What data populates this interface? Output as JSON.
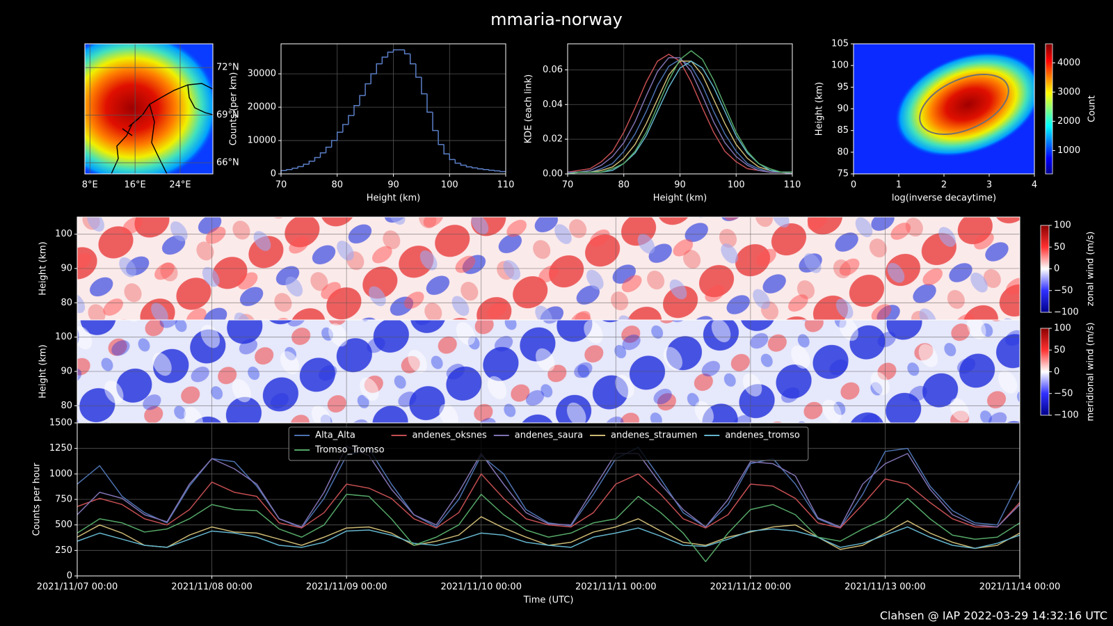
{
  "title": "mmaria-norway",
  "footer": "Clahsen @ IAP 2022-03-29 14:32:16 UTC",
  "chart_data": [
    {
      "type": "map",
      "xlim": [
        7.1,
        29.8
      ],
      "ylim": [
        65.3,
        73.5
      ],
      "xticks": [
        {
          "value": 8,
          "label": "8°E"
        },
        {
          "value": 16,
          "label": "16°E"
        },
        {
          "value": 24,
          "label": "24°E"
        }
      ],
      "yticks": [
        {
          "value": 72,
          "label": "72°N"
        },
        {
          "value": 69,
          "label": "69°N"
        },
        {
          "value": 66,
          "label": "66°N"
        }
      ],
      "grid": true
    },
    {
      "type": "histogram",
      "xlabel": "Height (km)",
      "ylabel": "Counts (per km)",
      "color": "#5b7fc8",
      "bins": [
        70,
        71,
        72,
        73,
        74,
        75,
        76,
        77,
        78,
        79,
        80,
        81,
        82,
        83,
        84,
        85,
        86,
        87,
        88,
        89,
        90,
        91,
        92,
        93,
        94,
        95,
        96,
        97,
        98,
        99,
        100,
        101,
        102,
        103,
        104,
        105,
        106,
        107,
        108,
        109,
        110
      ],
      "values": [
        1000,
        1300,
        1700,
        2200,
        2900,
        3800,
        4900,
        6300,
        8000,
        10000,
        12500,
        14800,
        17500,
        20500,
        23500,
        27000,
        30000,
        33000,
        35000,
        36500,
        37200,
        37200,
        36000,
        33000,
        29000,
        24000,
        18500,
        13000,
        8800,
        6000,
        4300,
        3200,
        2600,
        2100,
        1800,
        1500,
        1300,
        1100,
        900,
        700
      ],
      "xlim": [
        70,
        110
      ],
      "ylim": [
        0,
        39000
      ],
      "xticks": [
        70,
        80,
        90,
        100,
        110
      ],
      "yticks": [
        0,
        10000,
        20000,
        30000
      ],
      "grid": true
    },
    {
      "type": "line",
      "xlabel": "Height (km)",
      "ylabel": "KDE (each link)",
      "x": [
        70,
        72,
        74,
        76,
        78,
        80,
        82,
        84,
        86,
        88,
        90,
        92,
        94,
        96,
        98,
        100,
        102,
        104,
        106,
        108,
        110
      ],
      "series": [
        {
          "name": "Alta_Alta",
          "color": "#4c72b0",
          "values": [
            0.001,
            0.001,
            0.001,
            0.003,
            0.006,
            0.013,
            0.023,
            0.036,
            0.051,
            0.062,
            0.066,
            0.062,
            0.051,
            0.036,
            0.023,
            0.013,
            0.006,
            0.003,
            0.001,
            0.001,
            0.001
          ]
        },
        {
          "name": "andenes_oksnes",
          "color": "#c44e52",
          "values": [
            0.001,
            0.002,
            0.003,
            0.007,
            0.013,
            0.024,
            0.038,
            0.053,
            0.065,
            0.069,
            0.065,
            0.053,
            0.038,
            0.024,
            0.013,
            0.007,
            0.003,
            0.002,
            0.001,
            0.001,
            0.0
          ]
        },
        {
          "name": "andenes_saura",
          "color": "#8172b2",
          "values": [
            0.001,
            0.001,
            0.002,
            0.005,
            0.01,
            0.018,
            0.03,
            0.045,
            0.059,
            0.067,
            0.067,
            0.059,
            0.045,
            0.03,
            0.018,
            0.01,
            0.005,
            0.002,
            0.001,
            0.001,
            0.0
          ]
        },
        {
          "name": "andenes_straumen",
          "color": "#ccb974",
          "values": [
            0.0,
            0.001,
            0.001,
            0.002,
            0.004,
            0.009,
            0.017,
            0.029,
            0.043,
            0.057,
            0.065,
            0.065,
            0.057,
            0.043,
            0.029,
            0.017,
            0.009,
            0.004,
            0.002,
            0.001,
            0.001
          ]
        },
        {
          "name": "andenes_tromso",
          "color": "#64b5cd",
          "values": [
            0.0,
            0.001,
            0.001,
            0.001,
            0.002,
            0.006,
            0.012,
            0.022,
            0.036,
            0.05,
            0.061,
            0.065,
            0.061,
            0.05,
            0.036,
            0.022,
            0.012,
            0.006,
            0.002,
            0.001,
            0.001
          ]
        },
        {
          "name": "Tromso_Tromso",
          "color": "#55a868",
          "values": [
            0.0,
            0.001,
            0.001,
            0.001,
            0.003,
            0.006,
            0.013,
            0.024,
            0.039,
            0.054,
            0.066,
            0.071,
            0.066,
            0.054,
            0.039,
            0.024,
            0.013,
            0.006,
            0.003,
            0.001,
            0.001
          ]
        }
      ],
      "xlim": [
        70,
        110
      ],
      "ylim": [
        0,
        0.075
      ],
      "xticks": [
        70,
        80,
        90,
        100,
        110
      ],
      "yticks": [
        {
          "value": 0,
          "label": "0.00"
        },
        {
          "value": 0.02,
          "label": "0.02"
        },
        {
          "value": 0.04,
          "label": "0.04"
        },
        {
          "value": 0.06,
          "label": "0.06"
        }
      ],
      "grid": true
    },
    {
      "type": "hist2d",
      "xlabel": "log(inverse decaytime)",
      "ylabel": "Height (km)",
      "colorbar_label": "Count",
      "xlim": [
        0,
        4
      ],
      "ylim": [
        75,
        105
      ],
      "xticks": [
        0,
        1,
        2,
        3,
        4
      ],
      "yticks": [
        75,
        80,
        85,
        90,
        95,
        100,
        105
      ],
      "clim": [
        200,
        4650
      ],
      "cticks": [
        1000,
        2000,
        3000,
        4000
      ],
      "colormap": "jet"
    },
    {
      "type": "heatmap",
      "ylabel": "Height (km)",
      "colorbar_label": "zonal wind (m/s)",
      "xlim": [
        "2021/11/07 00:00",
        "2021/11/14 00:00"
      ],
      "ylim": [
        75,
        105
      ],
      "yticks": [
        80,
        90,
        100
      ],
      "clim": [
        -100,
        100
      ],
      "cticks": [
        {
          "value": -100,
          "label": "−100"
        },
        {
          "value": -50,
          "label": "−50"
        },
        0,
        50,
        100
      ],
      "colormap": "bwr"
    },
    {
      "type": "heatmap",
      "ylabel": "Height (km)",
      "colorbar_label": "meridional wind (m/s)",
      "xlim": [
        "2021/11/07 00:00",
        "2021/11/14 00:00"
      ],
      "ylim": [
        75,
        105
      ],
      "yticks": [
        80,
        90,
        100
      ],
      "clim": [
        -100,
        100
      ],
      "cticks": [
        {
          "value": -100,
          "label": "−100"
        },
        {
          "value": -50,
          "label": "−50"
        },
        0,
        50,
        100
      ],
      "colormap": "bwr"
    },
    {
      "type": "line",
      "xlabel": "Time (UTC)",
      "ylabel": "Counts per hour",
      "legend": "upper center",
      "legend_columns": 5,
      "x": [
        "2021/11/07 00:00",
        "2021/11/07 04:00",
        "2021/11/07 08:00",
        "2021/11/07 12:00",
        "2021/11/07 16:00",
        "2021/11/07 20:00",
        "2021/11/08 00:00",
        "2021/11/08 04:00",
        "2021/11/08 08:00",
        "2021/11/08 12:00",
        "2021/11/08 16:00",
        "2021/11/08 20:00",
        "2021/11/09 00:00",
        "2021/11/09 04:00",
        "2021/11/09 08:00",
        "2021/11/09 12:00",
        "2021/11/09 16:00",
        "2021/11/09 20:00",
        "2021/11/10 00:00",
        "2021/11/10 04:00",
        "2021/11/10 08:00",
        "2021/11/10 12:00",
        "2021/11/10 16:00",
        "2021/11/10 20:00",
        "2021/11/11 00:00",
        "2021/11/11 04:00",
        "2021/11/11 08:00",
        "2021/11/11 12:00",
        "2021/11/11 16:00",
        "2021/11/11 20:00",
        "2021/11/12 00:00",
        "2021/11/12 04:00",
        "2021/11/12 08:00",
        "2021/11/12 12:00",
        "2021/11/12 16:00",
        "2021/11/12 20:00",
        "2021/11/13 00:00",
        "2021/11/13 04:00",
        "2021/11/13 08:00",
        "2021/11/13 12:00",
        "2021/11/13 16:00",
        "2021/11/13 20:00",
        "2021/11/14 00:00"
      ],
      "series": [
        {
          "name": "Alta_Alta",
          "color": "#4c72b0",
          "values": [
            900,
            1080,
            780,
            620,
            520,
            880,
            1150,
            1120,
            880,
            560,
            470,
            760,
            1180,
            1250,
            900,
            600,
            480,
            750,
            1180,
            1000,
            650,
            520,
            490,
            800,
            1150,
            1260,
            950,
            620,
            480,
            700,
            1100,
            1150,
            900,
            560,
            470,
            800,
            1220,
            1250,
            880,
            640,
            520,
            500,
            940
          ]
        },
        {
          "name": "andenes_oksnes",
          "color": "#c44e52",
          "values": [
            680,
            760,
            700,
            560,
            500,
            650,
            920,
            820,
            780,
            520,
            470,
            620,
            900,
            860,
            760,
            560,
            470,
            620,
            1000,
            760,
            560,
            500,
            480,
            620,
            900,
            1000,
            800,
            560,
            470,
            600,
            900,
            880,
            760,
            520,
            470,
            700,
            950,
            900,
            720,
            560,
            480,
            480,
            720
          ]
        },
        {
          "name": "andenes_saura",
          "color": "#8172b2",
          "values": [
            600,
            820,
            760,
            600,
            530,
            900,
            1150,
            1050,
            900,
            560,
            480,
            820,
            1270,
            1180,
            850,
            600,
            500,
            820,
            1200,
            900,
            620,
            510,
            500,
            850,
            1200,
            1200,
            900,
            650,
            480,
            750,
            1120,
            1100,
            980,
            570,
            480,
            900,
            1100,
            1200,
            850,
            600,
            500,
            480,
            700
          ]
        },
        {
          "name": "andenes_straumen",
          "color": "#ccb974",
          "values": [
            380,
            500,
            420,
            300,
            280,
            400,
            480,
            430,
            420,
            360,
            300,
            380,
            470,
            480,
            420,
            300,
            340,
            400,
            580,
            470,
            380,
            300,
            330,
            430,
            480,
            560,
            440,
            330,
            300,
            380,
            430,
            480,
            500,
            380,
            260,
            300,
            420,
            540,
            420,
            330,
            270,
            300,
            420
          ]
        },
        {
          "name": "andenes_tromso",
          "color": "#64b5cd",
          "values": [
            340,
            420,
            360,
            300,
            280,
            360,
            440,
            420,
            380,
            300,
            280,
            330,
            440,
            450,
            400,
            320,
            300,
            350,
            420,
            400,
            330,
            300,
            280,
            380,
            420,
            470,
            390,
            300,
            290,
            360,
            440,
            460,
            440,
            380,
            280,
            320,
            400,
            480,
            380,
            300,
            270,
            320,
            400
          ]
        },
        {
          "name": "Tromso_Tromso",
          "color": "#55a868",
          "values": [
            420,
            560,
            520,
            430,
            460,
            560,
            700,
            650,
            640,
            460,
            380,
            500,
            800,
            780,
            560,
            300,
            380,
            500,
            800,
            600,
            450,
            380,
            420,
            520,
            560,
            780,
            620,
            420,
            140,
            420,
            650,
            700,
            600,
            380,
            340,
            460,
            560,
            760,
            560,
            400,
            360,
            380,
            520
          ]
        }
      ],
      "xlim": [
        "2021/11/07 00:00",
        "2021/11/14 00:00"
      ],
      "ylim": [
        0,
        1500
      ],
      "xticks": [
        "2021/11/07 00:00",
        "2021/11/08 00:00",
        "2021/11/09 00:00",
        "2021/11/10 00:00",
        "2021/11/11 00:00",
        "2021/11/12 00:00",
        "2021/11/13 00:00",
        "2021/11/14 00:00"
      ],
      "yticks": [
        0,
        250,
        500,
        750,
        1000,
        1250,
        1500
      ],
      "grid": true
    }
  ]
}
